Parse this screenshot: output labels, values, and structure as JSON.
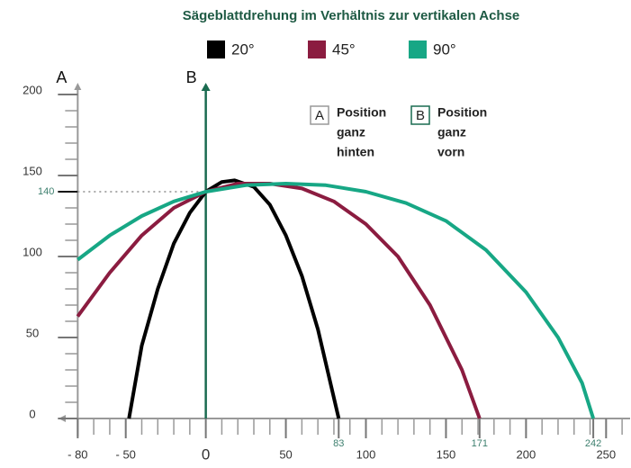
{
  "chart_data": {
    "type": "line",
    "title": "Sägeblattdrehung im Verhältnis zur vertikalen Achse",
    "y_axis_label": "A",
    "vertical_axis_label": "B",
    "annotations": [
      {
        "letter": "A",
        "lines": [
          "Position",
          "ganz",
          "hinten"
        ]
      },
      {
        "letter": "B",
        "lines": [
          "Position",
          "ganz",
          "vorn"
        ]
      }
    ],
    "series": [
      {
        "name": "20°",
        "color": "#000000",
        "x": [
          -48,
          -40,
          -30,
          -20,
          -10,
          0,
          10,
          18,
          30,
          40,
          50,
          60,
          70,
          83
        ],
        "values": [
          0,
          45,
          80,
          108,
          127,
          140,
          146,
          147,
          143,
          132,
          113,
          88,
          55,
          0
        ]
      },
      {
        "name": "45°",
        "color": "#8b1c40",
        "x": [
          -80,
          -60,
          -40,
          -20,
          0,
          20,
          40,
          60,
          80,
          100,
          120,
          140,
          160,
          171
        ],
        "values": [
          63,
          90,
          113,
          130,
          140,
          145,
          145,
          142,
          134,
          120,
          100,
          70,
          30,
          0
        ]
      },
      {
        "name": "90°",
        "color": "#17a785",
        "x": [
          -80,
          -60,
          -40,
          -20,
          0,
          25,
          50,
          75,
          100,
          125,
          150,
          175,
          200,
          220,
          235,
          242
        ],
        "values": [
          98,
          113,
          125,
          134,
          140,
          144,
          145,
          144,
          140,
          133,
          122,
          104,
          78,
          50,
          22,
          0
        ]
      }
    ],
    "xlim": [
      -92,
      265
    ],
    "ylim": [
      0,
      205
    ],
    "xticks": [
      {
        "value": -80,
        "label": "- 80"
      },
      {
        "value": -50,
        "label": "- 50"
      },
      0,
      50,
      83,
      100,
      150,
      171,
      200,
      242,
      250
    ],
    "yticks": [
      0,
      50,
      100,
      140,
      150,
      200
    ],
    "xminorticks": [
      -80,
      -70,
      -60,
      -50,
      -40,
      -30,
      -20,
      -10,
      0,
      10,
      20,
      30,
      40,
      50,
      60,
      70,
      80,
      90,
      100,
      110,
      120,
      130,
      140,
      150,
      160,
      170,
      180,
      190,
      200,
      210,
      220,
      230,
      240,
      250,
      260
    ],
    "yminorticks": [
      10,
      20,
      30,
      40,
      50,
      60,
      70,
      80,
      90,
      100,
      110,
      120,
      130,
      150,
      160,
      170,
      180,
      190,
      200
    ],
    "vertical_axis_color": "#1a6b50",
    "highlight_color": "#3d7f6e"
  }
}
